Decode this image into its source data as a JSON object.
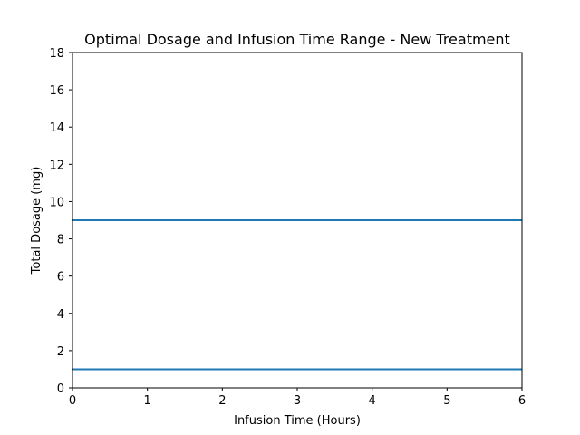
{
  "chart_data": {
    "type": "line",
    "title": "Optimal Dosage and Infusion Time Range - New Treatment",
    "xlabel": "Infusion Time (Hours)",
    "ylabel": "Total Dosage (mg)",
    "xlim": [
      0,
      6
    ],
    "ylim": [
      0,
      18
    ],
    "xticks": [
      0,
      1,
      2,
      3,
      4,
      5,
      6
    ],
    "yticks": [
      0,
      2,
      4,
      6,
      8,
      10,
      12,
      14,
      16,
      18
    ],
    "grid": false,
    "series": [
      {
        "x": [
          0,
          6
        ],
        "y": [
          1,
          1
        ],
        "color": "#1f77b4"
      },
      {
        "x": [
          0,
          6
        ],
        "y": [
          9,
          9
        ],
        "color": "#1f77b4"
      }
    ]
  }
}
